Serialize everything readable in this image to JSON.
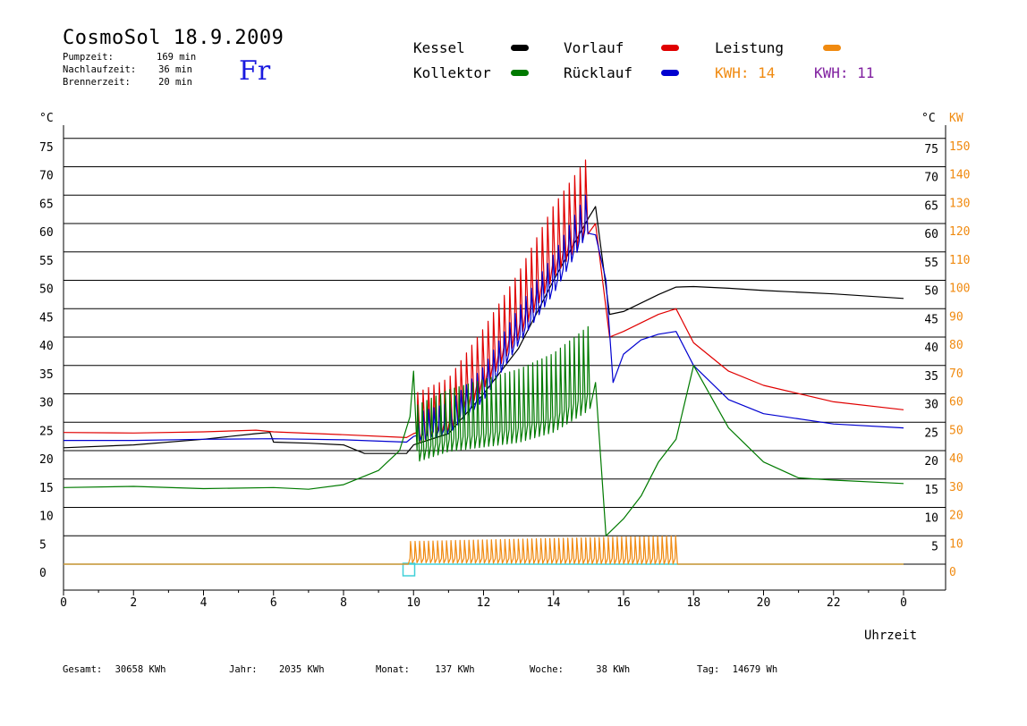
{
  "header": {
    "title": "CosmoSol 18.9.2009",
    "day": "Fr",
    "info": [
      {
        "label": "Pumpzeit:",
        "value": "169 min"
      },
      {
        "label": "Nachlaufzeit:",
        "value": "36 min"
      },
      {
        "label": "Brennerzeit:",
        "value": "20 min"
      }
    ]
  },
  "legend": {
    "kessel": "Kessel",
    "kollektor": "Kollektor",
    "vorlauf": "Vorlauf",
    "ruecklauf": "Rücklauf",
    "leistung": "Leistung",
    "kwh1_label": "KWH:",
    "kwh1_value": "14",
    "kwh2_label": "KWH:",
    "kwh2_value": "11"
  },
  "footer": {
    "gesamt_label": "Gesamt:",
    "gesamt_value": "30658 KWh",
    "jahr_label": "Jahr:",
    "jahr_value": "2035 KWh",
    "monat_label": "Monat:",
    "monat_value": "137 KWh",
    "woche_label": "Woche:",
    "woche_value": "38 KWh",
    "tag_label": "Tag:",
    "tag_value": "14679 Wh"
  },
  "chart_data": {
    "type": "line",
    "xlabel": "Uhrzeit",
    "ylabel_left": "°C",
    "ylabel_right_temp": "°C",
    "ylabel_right_power": "KW",
    "x_ticks": [
      "0",
      "2",
      "4",
      "6",
      "8",
      "10",
      "12",
      "14",
      "16",
      "18",
      "20",
      "22",
      "0"
    ],
    "y_ticks": [
      0,
      5,
      10,
      15,
      20,
      25,
      30,
      35,
      40,
      45,
      50,
      55,
      60,
      65,
      70,
      75
    ],
    "kw_ticks": [
      0,
      10,
      20,
      30,
      40,
      50,
      60,
      70,
      80,
      90,
      100,
      110,
      120,
      130,
      140,
      150
    ],
    "xlim": [
      0,
      24
    ],
    "ylim": [
      0,
      78
    ],
    "grid": true,
    "colors": {
      "kessel": "#000000",
      "kollektor": "#007a00",
      "vorlauf": "#e00000",
      "ruecklauf": "#0000d0",
      "leistung": "#f08a10",
      "kwh2": "#8020a0",
      "baseline": "#40d0d8"
    },
    "series": [
      {
        "name": "Kessel",
        "key": "kessel",
        "points": [
          [
            0,
            20.5
          ],
          [
            2,
            21
          ],
          [
            4,
            22
          ],
          [
            5.5,
            23
          ],
          [
            5.9,
            23.2
          ],
          [
            6,
            21.5
          ],
          [
            7,
            21.3
          ],
          [
            8,
            21
          ],
          [
            8.6,
            19.5
          ],
          [
            9.8,
            19.5
          ],
          [
            10,
            21
          ],
          [
            11,
            23
          ],
          [
            12,
            30
          ],
          [
            13,
            38
          ],
          [
            14,
            50
          ],
          [
            15,
            61
          ],
          [
            15.2,
            63
          ],
          [
            15.6,
            44
          ],
          [
            16,
            44.5
          ],
          [
            16.5,
            46
          ],
          [
            17,
            47.5
          ],
          [
            17.5,
            48.8
          ],
          [
            18,
            48.9
          ],
          [
            19,
            48.6
          ],
          [
            20,
            48.2
          ],
          [
            22,
            47.6
          ],
          [
            24,
            46.8
          ]
        ]
      },
      {
        "name": "Vorlauf",
        "key": "vorlauf",
        "spikes": {
          "start": 10.1,
          "end": 15.05,
          "count": 32,
          "amp_start": 7,
          "amp_end": 11
        },
        "points": [
          [
            0,
            23.2
          ],
          [
            2,
            23.1
          ],
          [
            4,
            23.3
          ],
          [
            5.5,
            23.6
          ],
          [
            6,
            23.3
          ],
          [
            8,
            22.8
          ],
          [
            9.8,
            22.3
          ],
          [
            10,
            23
          ],
          [
            11,
            25
          ],
          [
            12,
            33
          ],
          [
            13,
            42
          ],
          [
            14,
            53
          ],
          [
            15,
            61
          ],
          [
            15.2,
            60
          ],
          [
            15.6,
            40
          ],
          [
            16,
            41
          ],
          [
            16.5,
            42.5
          ],
          [
            17,
            44
          ],
          [
            17.5,
            45
          ],
          [
            18,
            39
          ],
          [
            19,
            34
          ],
          [
            20,
            31.5
          ],
          [
            22,
            28.6
          ],
          [
            24,
            27.2
          ]
        ]
      },
      {
        "name": "Rücklauf",
        "key": "ruecklauf",
        "spikes": {
          "start": 10.1,
          "end": 15.05,
          "count": 32,
          "amp_start": 4,
          "amp_end": 6
        },
        "points": [
          [
            0,
            21.8
          ],
          [
            2,
            21.8
          ],
          [
            4,
            22
          ],
          [
            6,
            22.1
          ],
          [
            8,
            21.9
          ],
          [
            9.8,
            21.5
          ],
          [
            10,
            22.5
          ],
          [
            11,
            24
          ],
          [
            12,
            30
          ],
          [
            13,
            40
          ],
          [
            14,
            49
          ],
          [
            15,
            60
          ],
          [
            15.2,
            58
          ],
          [
            15.5,
            50
          ],
          [
            15.7,
            32
          ],
          [
            16,
            37
          ],
          [
            16.5,
            39.5
          ],
          [
            17,
            40.5
          ],
          [
            17.5,
            41
          ],
          [
            18,
            35
          ],
          [
            19,
            29
          ],
          [
            20,
            26.5
          ],
          [
            22,
            24.7
          ],
          [
            24,
            24
          ]
        ]
      },
      {
        "name": "Kollektor",
        "key": "kollektor",
        "spikes": {
          "start": 10.1,
          "end": 15.1,
          "count": 38,
          "amp_start": 8,
          "amp_end": 12
        },
        "points": [
          [
            0,
            13.5
          ],
          [
            2,
            13.7
          ],
          [
            4,
            13.3
          ],
          [
            6,
            13.5
          ],
          [
            7,
            13.2
          ],
          [
            8,
            14
          ],
          [
            9,
            16.5
          ],
          [
            9.6,
            20
          ],
          [
            9.9,
            26
          ],
          [
            10,
            34
          ],
          [
            10.1,
            20
          ],
          [
            11,
            22
          ],
          [
            12,
            23
          ],
          [
            13,
            24
          ],
          [
            14,
            26
          ],
          [
            14.5,
            28
          ],
          [
            15,
            30
          ],
          [
            15.2,
            32
          ],
          [
            15.5,
            5
          ],
          [
            16,
            8
          ],
          [
            16.5,
            12
          ],
          [
            17,
            18
          ],
          [
            17.5,
            22
          ],
          [
            18,
            35
          ],
          [
            19,
            24
          ],
          [
            20,
            18
          ],
          [
            21,
            15.2
          ],
          [
            22,
            14.8
          ],
          [
            24,
            14.2
          ]
        ]
      },
      {
        "name": "Leistung",
        "key": "leistung",
        "spikes": {
          "start": 9.9,
          "end": 17.6,
          "count": 60,
          "amp_start": 3,
          "amp_end": 4
        },
        "points": [
          [
            0,
            0
          ],
          [
            9.85,
            0
          ],
          [
            9.9,
            1
          ],
          [
            17.6,
            1
          ],
          [
            17.7,
            0
          ],
          [
            24,
            0
          ]
        ]
      }
    ]
  }
}
